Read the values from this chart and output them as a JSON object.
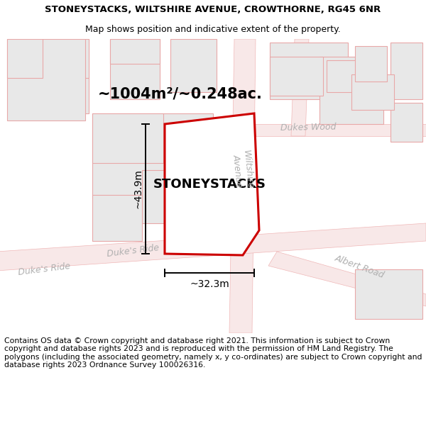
{
  "title_line1": "STONEYSTACKS, WILTSHIRE AVENUE, CROWTHORNE, RG45 6NR",
  "title_line2": "Map shows position and indicative extent of the property.",
  "property_name": "STONEYSTACKS",
  "area_label": "~1004m²/~0.248ac.",
  "width_label": "~32.3m",
  "height_label": "~43.9m",
  "footer_text": "Contains OS data © Crown copyright and database right 2021. This information is subject to Crown copyright and database rights 2023 and is reproduced with the permission of HM Land Registry. The polygons (including the associated geometry, namely x, y co-ordinates) are subject to Crown copyright and database rights 2023 Ordnance Survey 100026316.",
  "bg_color": "#ffffff",
  "map_bg": "#ffffff",
  "plot_fill": "#ffffff",
  "plot_edge": "#cc0000",
  "road_outline": "#f0b8b8",
  "road_fill": "#f8e8e8",
  "building_fill": "#e8e8e8",
  "building_outline": "#e8a8a8",
  "road_label_color": "#b0b0b0",
  "dim_line_color": "#000000",
  "title_fontsize": 9.5,
  "subtitle_fontsize": 9.0,
  "property_label_fontsize": 13,
  "area_label_fontsize": 15,
  "dim_label_fontsize": 10,
  "footer_fontsize": 7.8,
  "road_label_fontsize": 9
}
